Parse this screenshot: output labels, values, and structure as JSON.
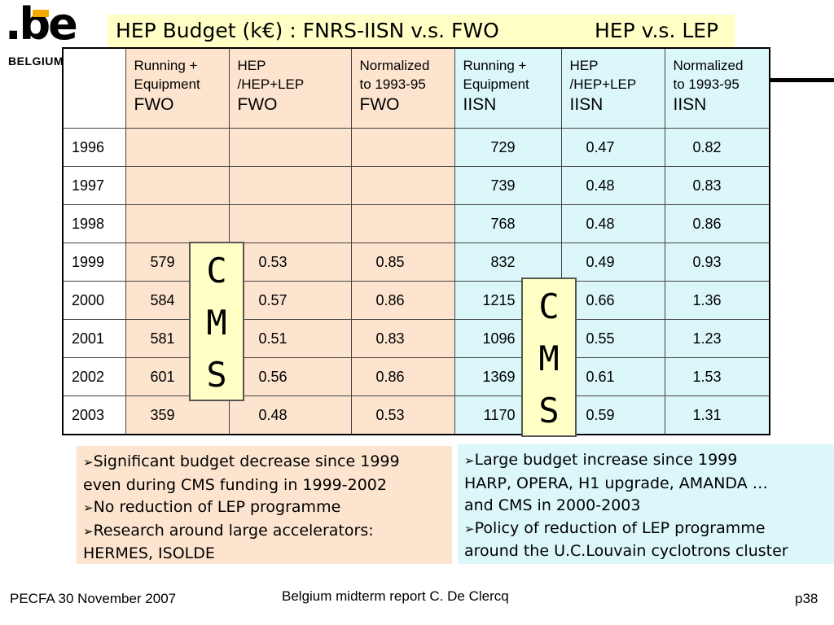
{
  "logo": {
    "mark": ".be",
    "country": "BELGIUM"
  },
  "title": {
    "main": "HEP Budget (k€) : FNRS-IISN v.s. FWO",
    "secondary": "HEP v.s. LEP"
  },
  "table": {
    "headers": [
      {
        "line1": "",
        "line2": "",
        "line3": ""
      },
      {
        "line1": "Running +",
        "line2": "Equipment",
        "line3": "FWO"
      },
      {
        "line1": "HEP",
        "line2": "/HEP+LEP",
        "line3": "FWO"
      },
      {
        "line1": "Normalized",
        "line2": "to 1993-95",
        "line3": "FWO"
      },
      {
        "line1": "Running +",
        "line2": "Equipment",
        "line3": "IISN"
      },
      {
        "line1": "HEP",
        "line2": "/HEP+LEP",
        "line3": "IISN"
      },
      {
        "line1": "Normalized",
        "line2": "to 1993-95",
        "line3": "IISN"
      }
    ],
    "rows": [
      {
        "year": "1996",
        "fwo_re": "",
        "fwo_hep": "",
        "fwo_norm": "",
        "iisn_re": "729",
        "iisn_hep": "0.47",
        "iisn_norm": "0.82"
      },
      {
        "year": "1997",
        "fwo_re": "",
        "fwo_hep": "",
        "fwo_norm": "",
        "iisn_re": "739",
        "iisn_hep": "0.48",
        "iisn_norm": "0.83"
      },
      {
        "year": "1998",
        "fwo_re": "",
        "fwo_hep": "",
        "fwo_norm": "",
        "iisn_re": "768",
        "iisn_hep": "0.48",
        "iisn_norm": "0.86"
      },
      {
        "year": "1999",
        "fwo_re": "579",
        "fwo_hep": "0.53",
        "fwo_norm": "0.85",
        "iisn_re": "832",
        "iisn_hep": "0.49",
        "iisn_norm": "0.93"
      },
      {
        "year": "2000",
        "fwo_re": "584",
        "fwo_hep": "0.57",
        "fwo_norm": "0.86",
        "iisn_re": "1215",
        "iisn_hep": "0.66",
        "iisn_norm": "1.36"
      },
      {
        "year": "2001",
        "fwo_re": "581",
        "fwo_hep": "0.51",
        "fwo_norm": "0.83",
        "iisn_re": "1096",
        "iisn_hep": "0.55",
        "iisn_norm": "1.23"
      },
      {
        "year": "2002",
        "fwo_re": "601",
        "fwo_hep": "0.56",
        "fwo_norm": "0.86",
        "iisn_re": "1369",
        "iisn_hep": "0.61",
        "iisn_norm": "1.53"
      },
      {
        "year": "2003",
        "fwo_re": "359",
        "fwo_hep": "0.48",
        "fwo_norm": "0.53",
        "iisn_re": "1170",
        "iisn_hep": "0.59",
        "iisn_norm": "1.31"
      }
    ]
  },
  "cms_left": [
    "C",
    "M",
    "S"
  ],
  "cms_right": [
    "C",
    "M",
    "S"
  ],
  "notes_left": [
    {
      "bullet": "➢",
      "text": "Significant budget decrease since 1999"
    },
    {
      "bullet": "",
      "text": "even during CMS funding in 1999-2002"
    },
    {
      "bullet": "➢",
      "text": "No reduction of LEP programme"
    },
    {
      "bullet": "➢",
      "text": "Research around large accelerators:"
    },
    {
      "bullet": "",
      "text": "HERMES, ISOLDE"
    }
  ],
  "notes_right": [
    {
      "bullet": "➢",
      "text": "Large budget increase since 1999"
    },
    {
      "bullet": "",
      "text": "HARP, OPERA, H1 upgrade, AMANDA …"
    },
    {
      "bullet": "",
      "text": "and CMS in 2000-2003"
    },
    {
      "bullet": "➢",
      "text": "Policy of reduction of LEP programme"
    },
    {
      "bullet": "",
      "text": "around the U.C.Louvain cyclotrons cluster"
    }
  ],
  "footer": {
    "left": "PECFA 30 November 2007",
    "center": "Belgium midterm report C. De Clercq",
    "right": "p38"
  },
  "colors": {
    "title_bg": "#ffffc6",
    "fwo_bg": "#fde4cf",
    "iisn_bg": "#dbf7f9",
    "logo_dot": "#f2a900"
  }
}
